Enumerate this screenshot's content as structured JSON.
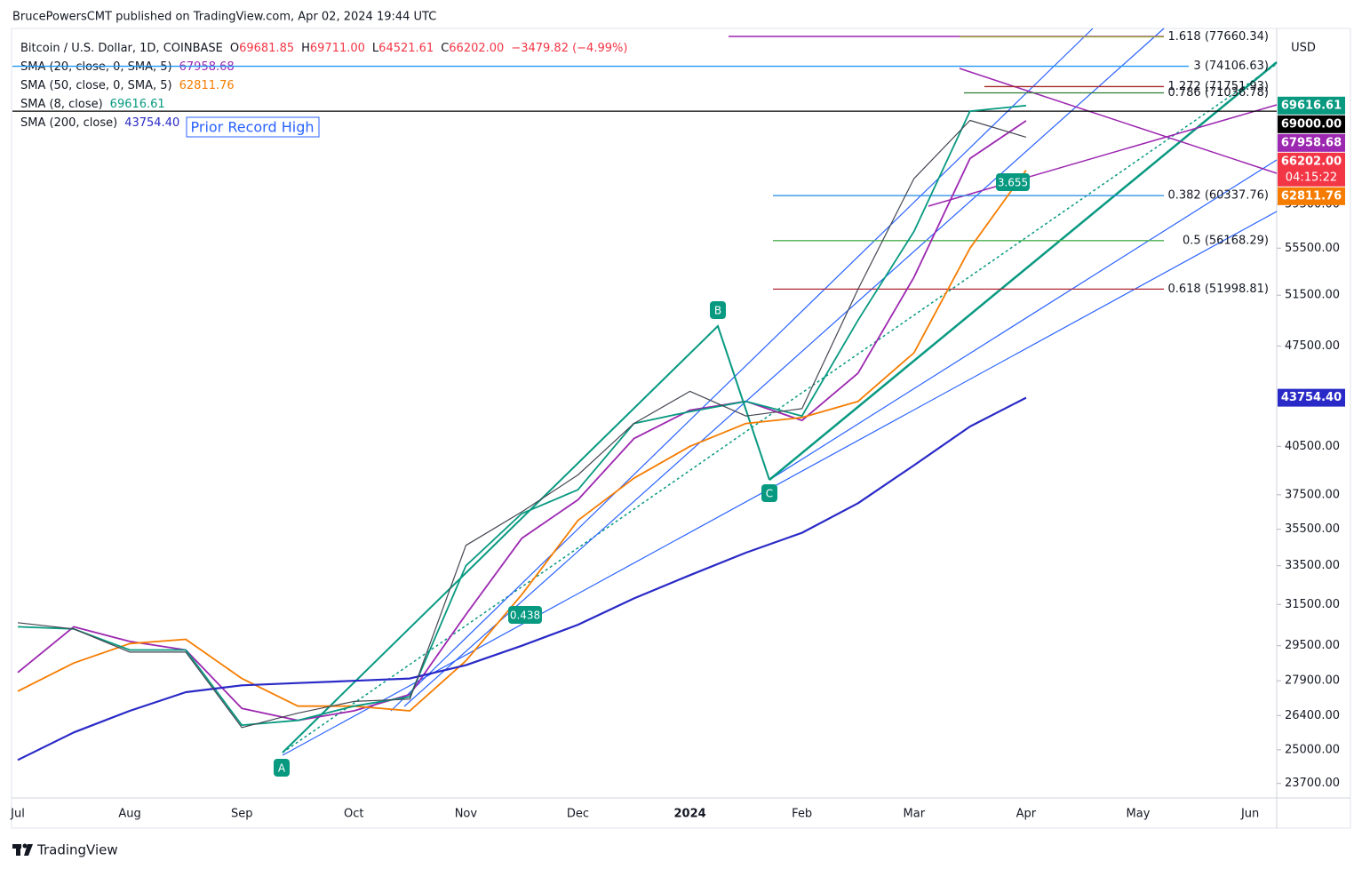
{
  "header": "BrucePowersCMT published on TradingView.com, Apr 02, 2024 19:44 UTC",
  "footer": "TradingView",
  "chart_data": {
    "type": "line",
    "symbol": "Bitcoin / U.S. Dollar, 1D, COINBASE",
    "ohlc": [
      {
        "key": "O",
        "text": "69681.85"
      },
      {
        "key": "H",
        "text": "69711.00"
      },
      {
        "key": "L",
        "text": "64521.61"
      },
      {
        "key": "C",
        "text": "66202.00"
      }
    ],
    "change": "−3479.82 (−4.99%)",
    "currency": "USD",
    "log_scale": true,
    "categories": [
      "Jul",
      null,
      "Aug",
      null,
      "Sep",
      null,
      "Oct",
      null,
      "Nov",
      null,
      "Dec",
      null,
      "2024",
      null,
      "Feb",
      null,
      "Mar",
      null,
      "Apr",
      null,
      "May",
      null,
      "Jun"
    ],
    "price": {
      "color": "#434651",
      "values": [
        30600,
        30300,
        29200,
        29200,
        25900,
        26500,
        27000,
        27100,
        34600,
        36500,
        38700,
        42000,
        44200,
        42500,
        43000,
        52000,
        62000,
        68000,
        66202,
        null,
        null,
        null,
        null
      ]
    },
    "series": [
      {
        "name": "SMA (20, close, 0, SMA, 5)",
        "tag": "67958.68",
        "color": "#9c27b0",
        "values": [
          28270,
          30400,
          29700,
          29300,
          26700,
          26200,
          26600,
          27300,
          31000,
          35000,
          37200,
          41000,
          42900,
          43500,
          42200,
          45500,
          53000,
          64000,
          67958.68,
          null,
          null,
          null,
          null
        ]
      },
      {
        "name": "SMA (50, close, 0, SMA, 5)",
        "tag": "62811.76",
        "color": "#f57c00",
        "values": [
          27440,
          28700,
          29600,
          29800,
          28000,
          26800,
          26800,
          26600,
          28800,
          32000,
          36000,
          38500,
          40500,
          42000,
          42400,
          43500,
          47000,
          55500,
          62811.76,
          null,
          null,
          null,
          null
        ]
      },
      {
        "name": "SMA (8, close)",
        "tag": "69616.61",
        "color": "#089981",
        "values": [
          30400,
          30300,
          29300,
          29300,
          26000,
          26200,
          26800,
          27200,
          33500,
          36400,
          37800,
          42000,
          42800,
          43500,
          42500,
          49500,
          57000,
          69000,
          69616.61,
          null,
          null,
          null,
          null
        ]
      },
      {
        "name": "SMA (200, close)",
        "tag": "43754.40",
        "color": "#2929c7",
        "values": [
          24600,
          25700,
          26600,
          27400,
          27700,
          27800,
          27900,
          28000,
          28600,
          29500,
          30500,
          31800,
          33000,
          34200,
          35300,
          37000,
          39300,
          41800,
          43754.4,
          null,
          null,
          null,
          null
        ]
      }
    ],
    "price_tags": [
      {
        "value": 69000,
        "label": "69000.00",
        "color": "#000000"
      },
      {
        "value": 66202,
        "label": "66202.00",
        "sub": "04:15:22",
        "color": "#f23645"
      }
    ],
    "levels": [
      {
        "value": 77660.34,
        "label": "1.618 (77660.34)",
        "color": "#9aad2f"
      },
      {
        "value": 74106.63,
        "label": "3 (74106.63)",
        "color": "#2196f3"
      },
      {
        "value": 71751.93,
        "label": "1.272 (71751.93)",
        "color": "#a52a2a"
      },
      {
        "value": 71036.78,
        "label": "0.786 (71036.78)",
        "color": "#2e7d32"
      },
      {
        "value": 60337.76,
        "label": "0.382 (60337.76)",
        "color": "#1e88e5"
      },
      {
        "value": 56168.29,
        "label": "0.5 (56168.29)",
        "color": "#4caf50"
      },
      {
        "value": 51998.81,
        "label": "0.618 (51998.81)",
        "color": "#b22833"
      }
    ],
    "annotations": {
      "a": "A",
      "b": "B",
      "c": "C",
      "ratio1": "0.438",
      "ratio2": "3.655",
      "note": "Prior Record High"
    },
    "ylim": [
      23160,
      78700
    ],
    "yticks": [
      {
        "value": 23700,
        "label": "23700.00"
      },
      {
        "value": 25000,
        "label": "25000.00"
      },
      {
        "value": 26400,
        "label": "26400.00"
      },
      {
        "value": 27900,
        "label": "27900.00"
      },
      {
        "value": 29500,
        "label": "29500.00"
      },
      {
        "value": 31500,
        "label": "31500.00"
      },
      {
        "value": 33500,
        "label": "33500.00"
      },
      {
        "value": 35500,
        "label": "35500.00"
      },
      {
        "value": 37500,
        "label": "37500.00"
      },
      {
        "value": 40500,
        "label": "40500.00"
      },
      {
        "value": 47500,
        "label": "47500.00"
      },
      {
        "value": 51500,
        "label": "51500.00"
      },
      {
        "value": 55500,
        "label": "55500.00"
      },
      {
        "value": 59500,
        "label": "59500.00"
      }
    ]
  }
}
